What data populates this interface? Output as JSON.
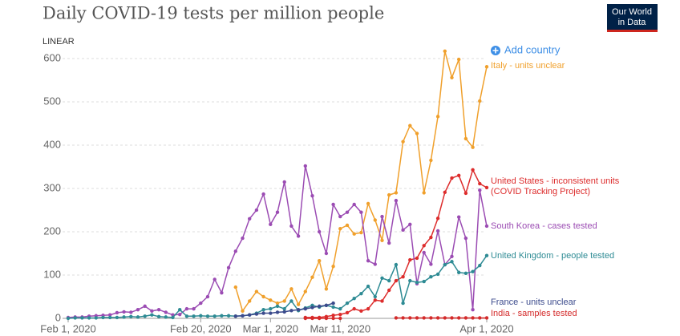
{
  "chart_data": {
    "type": "line",
    "title": "Daily COVID-19 tests per million people",
    "scale_label": "LINEAR",
    "add_country": "Add country",
    "logo": [
      "Our World",
      "in Data"
    ],
    "x": [
      "2020-02-01",
      "2020-02-02",
      "2020-02-03",
      "2020-02-04",
      "2020-02-05",
      "2020-02-06",
      "2020-02-07",
      "2020-02-08",
      "2020-02-09",
      "2020-02-10",
      "2020-02-11",
      "2020-02-12",
      "2020-02-13",
      "2020-02-14",
      "2020-02-15",
      "2020-02-16",
      "2020-02-17",
      "2020-02-18",
      "2020-02-19",
      "2020-02-20",
      "2020-02-21",
      "2020-02-22",
      "2020-02-23",
      "2020-02-24",
      "2020-02-25",
      "2020-02-26",
      "2020-02-27",
      "2020-02-28",
      "2020-02-29",
      "2020-03-01",
      "2020-03-02",
      "2020-03-03",
      "2020-03-04",
      "2020-03-05",
      "2020-03-06",
      "2020-03-07",
      "2020-03-08",
      "2020-03-09",
      "2020-03-10",
      "2020-03-11",
      "2020-03-12",
      "2020-03-13",
      "2020-03-14",
      "2020-03-15",
      "2020-03-16",
      "2020-03-17",
      "2020-03-18",
      "2020-03-19",
      "2020-03-20",
      "2020-03-21",
      "2020-03-22",
      "2020-03-23",
      "2020-03-24",
      "2020-03-25",
      "2020-03-26",
      "2020-03-27",
      "2020-03-28",
      "2020-03-29",
      "2020-03-30",
      "2020-03-31",
      "2020-04-01"
    ],
    "xlim": [
      "2020-02-01",
      "2020-04-01"
    ],
    "xticks": [
      {
        "value": "2020-02-01",
        "label": "Feb 1, 2020"
      },
      {
        "value": "2020-02-20",
        "label": "Feb 20, 2020"
      },
      {
        "value": "2020-03-01",
        "label": "Mar 1, 2020"
      },
      {
        "value": "2020-03-11",
        "label": "Mar 11, 2020"
      },
      {
        "value": "2020-04-01",
        "label": "Apr 1, 2020"
      }
    ],
    "ylim": [
      0,
      600
    ],
    "yticks": [
      0,
      100,
      200,
      300,
      400,
      500,
      600
    ],
    "grid": true,
    "series": [
      {
        "name": "Italy - units unclear",
        "color": "#f0a02c",
        "values": [
          null,
          null,
          null,
          null,
          null,
          null,
          null,
          null,
          null,
          null,
          null,
          null,
          null,
          null,
          null,
          null,
          null,
          null,
          null,
          null,
          null,
          null,
          null,
          null,
          72,
          17,
          40,
          62,
          50,
          42,
          35,
          40,
          68,
          32,
          62,
          95,
          133,
          68,
          120,
          207,
          215,
          195,
          198,
          265,
          227,
          180,
          285,
          290,
          408,
          445,
          427,
          290,
          365,
          466,
          617,
          556,
          598,
          415,
          395,
          502,
          581
        ]
      },
      {
        "name": "United States - inconsistent units (COVID Tracking Project)",
        "color": "#dd2c2c",
        "values": [
          null,
          null,
          null,
          null,
          null,
          null,
          null,
          null,
          null,
          null,
          null,
          null,
          null,
          null,
          null,
          null,
          null,
          null,
          null,
          null,
          null,
          null,
          null,
          null,
          null,
          null,
          null,
          null,
          null,
          null,
          null,
          null,
          null,
          null,
          2,
          2,
          2,
          4,
          7,
          9,
          13,
          22,
          17,
          22,
          42,
          40,
          65,
          87,
          96,
          135,
          139,
          168,
          187,
          231,
          291,
          324,
          330,
          289,
          343,
          311,
          302
        ]
      },
      {
        "name": "South Korea - cases tested",
        "color": "#9b4cb3",
        "values": [
          2,
          3,
          3,
          5,
          6,
          7,
          8,
          13,
          15,
          14,
          20,
          28,
          17,
          20,
          14,
          8,
          9,
          22,
          22,
          35,
          50,
          90,
          59,
          117,
          155,
          185,
          230,
          250,
          287,
          217,
          245,
          315,
          213,
          190,
          352,
          283,
          200,
          150,
          263,
          235,
          245,
          263,
          245,
          133,
          125,
          235,
          174,
          272,
          204,
          217,
          80,
          152,
          125,
          202,
          124,
          143,
          234,
          185,
          20,
          296,
          213
        ]
      },
      {
        "name": "United Kingdom - people tested",
        "color": "#2e8b94",
        "values": [
          0,
          1,
          1,
          1,
          1,
          2,
          2,
          2,
          3,
          4,
          3,
          5,
          8,
          4,
          3,
          2,
          20,
          5,
          5,
          6,
          5,
          5,
          6,
          6,
          5,
          6,
          8,
          12,
          20,
          22,
          28,
          22,
          40,
          18,
          24,
          30,
          26,
          30,
          26,
          22,
          35,
          46,
          57,
          74,
          50,
          93,
          87,
          124,
          35,
          87,
          83,
          85,
          96,
          102,
          124,
          131,
          106,
          104,
          108,
          122,
          145
        ]
      },
      {
        "name": "France - units unclear",
        "color": "#3b4a8c",
        "values": [
          null,
          null,
          null,
          null,
          null,
          null,
          null,
          null,
          null,
          null,
          null,
          null,
          null,
          null,
          null,
          null,
          null,
          null,
          null,
          null,
          null,
          null,
          null,
          null,
          5,
          6,
          8,
          10,
          12,
          12,
          14,
          15,
          18,
          20,
          22,
          25,
          28,
          30,
          35,
          null,
          null,
          null,
          null,
          null,
          null,
          null,
          null,
          null,
          null,
          null,
          null,
          null,
          null,
          null,
          null,
          null,
          null,
          null,
          null,
          null,
          null
        ]
      },
      {
        "name": "India - samples tested",
        "color": "#d42a2a",
        "values": [
          null,
          null,
          null,
          null,
          null,
          null,
          null,
          null,
          null,
          null,
          null,
          null,
          null,
          null,
          null,
          null,
          null,
          null,
          null,
          null,
          null,
          null,
          null,
          null,
          null,
          null,
          null,
          null,
          null,
          null,
          null,
          null,
          null,
          null,
          0,
          0,
          0,
          0,
          0,
          0,
          null,
          null,
          null,
          null,
          null,
          null,
          null,
          1,
          1,
          1,
          1,
          1,
          1,
          1,
          1,
          1,
          1,
          1,
          1,
          1,
          1
        ]
      }
    ]
  }
}
